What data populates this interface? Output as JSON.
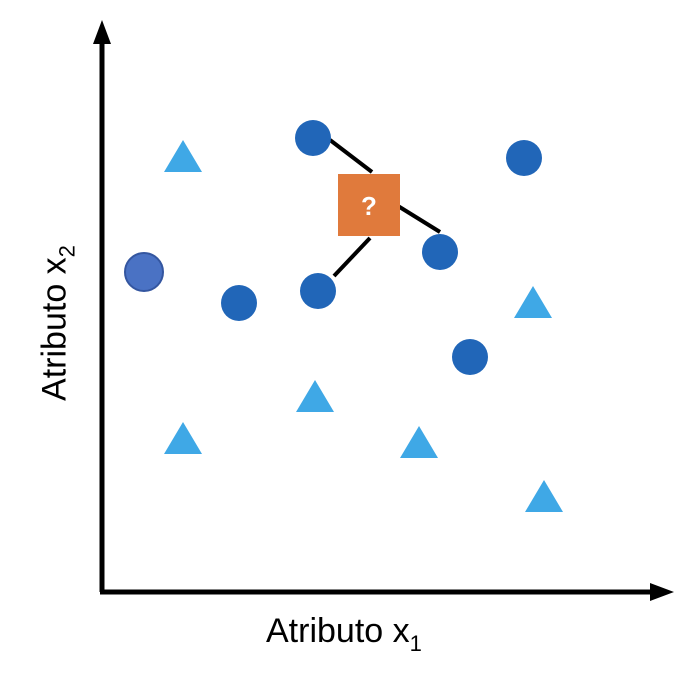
{
  "diagram": {
    "x_axis": {
      "label": "Atributo x",
      "subscript": "1"
    },
    "y_axis": {
      "label": "Atributo x",
      "subscript": "2"
    },
    "query": {
      "symbol": "?",
      "color": "#e07a3c"
    },
    "colors": {
      "circle": "#2166b8",
      "circle_highlight": "#4a72c4",
      "triangle": "#3fa8e6",
      "axis": "#000000",
      "neighbor_line": "#000000"
    },
    "classes": [
      "circle",
      "triangle"
    ],
    "neighbor_count": 3
  }
}
